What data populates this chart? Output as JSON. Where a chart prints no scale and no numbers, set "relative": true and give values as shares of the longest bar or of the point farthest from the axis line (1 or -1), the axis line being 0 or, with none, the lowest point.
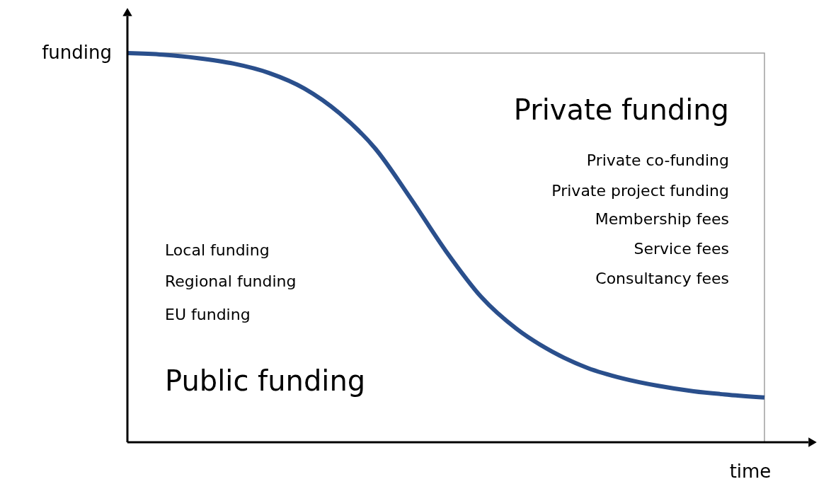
{
  "chart_data": {
    "type": "line",
    "relative": true,
    "xlabel": "time",
    "ylabel": "funding",
    "categories": [
      null,
      null,
      null,
      null,
      null,
      null,
      null,
      null,
      null,
      null,
      null,
      null,
      null,
      null,
      null,
      null,
      null,
      null,
      null
    ],
    "series": [
      {
        "color": "#2a4f8c",
        "values": [
          1.0,
          0.996,
          0.987,
          0.973,
          0.949,
          0.909,
          0.845,
          0.755,
          0.627,
          0.491,
          0.373,
          0.291,
          0.233,
          0.191,
          0.164,
          0.145,
          0.131,
          0.122,
          0.115
        ]
      }
    ],
    "annotations": [
      "Private funding",
      "Private co-funding",
      "Private project funding",
      "Membership fees",
      "Service fees",
      "Consultancy fees",
      "Local funding",
      "Regional funding",
      "EU funding",
      "Public funding"
    ]
  }
}
